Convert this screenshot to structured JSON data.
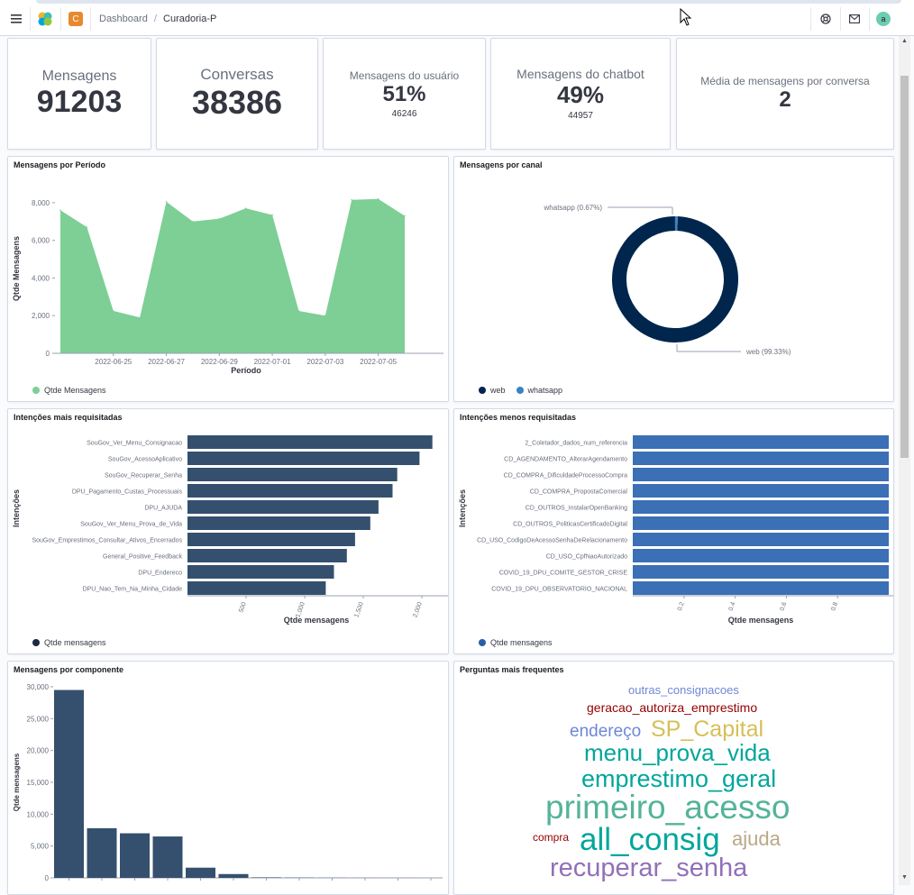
{
  "breadcrumb": {
    "root": "Dashboard",
    "separator": "/",
    "current": "Curadoria-P"
  },
  "space": {
    "letter": "C"
  },
  "user": {
    "initial": "a"
  },
  "icons": {
    "menu": "hamburger-menu-icon",
    "logo": "app-logo-icon",
    "help": "help-icon",
    "mail": "mail-icon"
  },
  "metrics": [
    {
      "label": "Mensagens",
      "value": "91203"
    },
    {
      "label": "Conversas",
      "value": "38386"
    },
    {
      "label": "Mensagens do usuário",
      "value": "51%",
      "sub": "46246"
    },
    {
      "label": "Mensagens do chatbot",
      "value": "49%",
      "sub": "44957"
    },
    {
      "label": "Média de mensagens por conversa",
      "value": "2"
    }
  ],
  "panels": {
    "period": {
      "title": "Mensagens por Período",
      "legend": "Qtde Mensagens",
      "color": "#7dcf95",
      "chart_data": {
        "type": "area",
        "xlabel": "Período",
        "ylabel": "Qtde Mensagens",
        "x": [
          "2022-06-23",
          "2022-06-24",
          "2022-06-25",
          "2022-06-26",
          "2022-06-27",
          "2022-06-28",
          "2022-06-29",
          "2022-06-30",
          "2022-07-01",
          "2022-07-02",
          "2022-07-03",
          "2022-07-04",
          "2022-07-05",
          "2022-07-06"
        ],
        "values": [
          7600,
          6700,
          2250,
          1900,
          8050,
          7000,
          7150,
          7700,
          7350,
          2250,
          2000,
          8150,
          8200,
          7300
        ],
        "xticks": [
          "2022-06-25",
          "2022-06-27",
          "2022-06-29",
          "2022-07-01",
          "2022-07-03",
          "2022-07-05"
        ],
        "yticks": [
          "0",
          "2,000",
          "4,000",
          "6,000",
          "8,000"
        ],
        "ylim": [
          0,
          9000
        ]
      }
    },
    "channel": {
      "title": "Mensagens por canal",
      "chart_data": {
        "type": "pie",
        "categories": [
          "web",
          "whatsapp"
        ],
        "values": [
          99.33,
          0.67
        ],
        "labels": [
          "web (99.33%)",
          "whatsapp (0.67%)"
        ],
        "colors": [
          "#00264d",
          "#3b82c4"
        ]
      },
      "legend": [
        "web",
        "whatsapp"
      ]
    },
    "top_intents": {
      "title": "Intenções mais requisitadas",
      "legend": "Qtde mensagens",
      "color": "#34506e",
      "chart_data": {
        "type": "bar",
        "categories": [
          "SouGov_Ver_Menu_Consignacao",
          "SouGov_AcessoAplicativo",
          "SouGov_Recuperar_Senha",
          "DPU_Pagamento_Custas_Processuais",
          "DPU_AJUDA",
          "SouGov_Ver_Menu_Prova_de_Vida",
          "SouGov_Emprestimos_Consultar_Ativos_Encerrados",
          "General_Positive_Feedback",
          "DPU_Endereco",
          "DPU_Nao_Tem_Na_Minha_Cidade"
        ],
        "values": [
          2090,
          1980,
          1790,
          1750,
          1630,
          1560,
          1430,
          1360,
          1250,
          1180
        ],
        "xlabel": "Qtde mensagens",
        "ylabel": "Intenções",
        "xticks": [
          "500",
          "1,000",
          "1,500",
          "2,000"
        ],
        "xlim": [
          0,
          2200
        ]
      }
    },
    "bottom_intents": {
      "title": "Intenções menos requisitadas",
      "legend": "Qtde mensagens",
      "color": "#3b6fb6",
      "chart_data": {
        "type": "bar",
        "categories": [
          "2_Coletador_dados_num_referencia",
          "CD_AGENDAMENTO_AlterarAgendamento",
          "CD_COMPRA_DificuldadeProcessoCompra",
          "CD_COMPRA_PropostaComercial",
          "CD_OUTROS_InstalarOpenBanking",
          "CD_OUTROS_PoliticasCertificadoDigital",
          "CD_USO_CodigoDeAcessoSenhaDeRelacionamento",
          "CD_USO_CpfNaoAutorizado",
          "COVID_19_DPU_COMITE_GESTOR_CRISE",
          "COVID_19_DPU_OBSERVATORIO_NACIONAL"
        ],
        "values": [
          1,
          1,
          1,
          1,
          1,
          1,
          1,
          1,
          1,
          1
        ],
        "xlabel": "Qtde mensagens",
        "ylabel": "Intenções",
        "xticks": [
          "0.2",
          "0.4",
          "0.6",
          "0.8"
        ],
        "xlim": [
          0,
          1
        ]
      }
    },
    "component": {
      "title": "Mensagens por componente",
      "color": "#34506e",
      "chart_data": {
        "type": "bar",
        "values": [
          29500,
          7800,
          7000,
          6500,
          1600,
          600,
          80,
          40,
          20,
          10,
          5,
          2
        ],
        "ylabel": "Qtde mensagens",
        "yticks": [
          "0",
          "5,000",
          "10,000",
          "15,000",
          "20,000",
          "25,000",
          "30,000"
        ],
        "ylim": [
          0,
          30000
        ]
      }
    },
    "questions": {
      "title": "Perguntas mais frequentes",
      "words": [
        {
          "text": "outras_consignacoes",
          "color": "#6f87d8"
        },
        {
          "text": "geracao_autoriza_emprestimo",
          "color": "#920000"
        },
        {
          "text": "endereço",
          "color": "#6f87d8"
        },
        {
          "text": "SP_Capital",
          "color": "#d6bf57"
        },
        {
          "text": "menu_prova_vida",
          "color": "#00a69b"
        },
        {
          "text": "emprestimo_geral",
          "color": "#00a69b"
        },
        {
          "text": "primeiro_acesso",
          "color": "#54b399"
        },
        {
          "text": "compra",
          "color": "#920000"
        },
        {
          "text": "all_consig",
          "color": "#00a69b"
        },
        {
          "text": "ajuda",
          "color": "#b9a888"
        },
        {
          "text": "recuperar_senha",
          "color": "#9170b8"
        }
      ]
    }
  }
}
